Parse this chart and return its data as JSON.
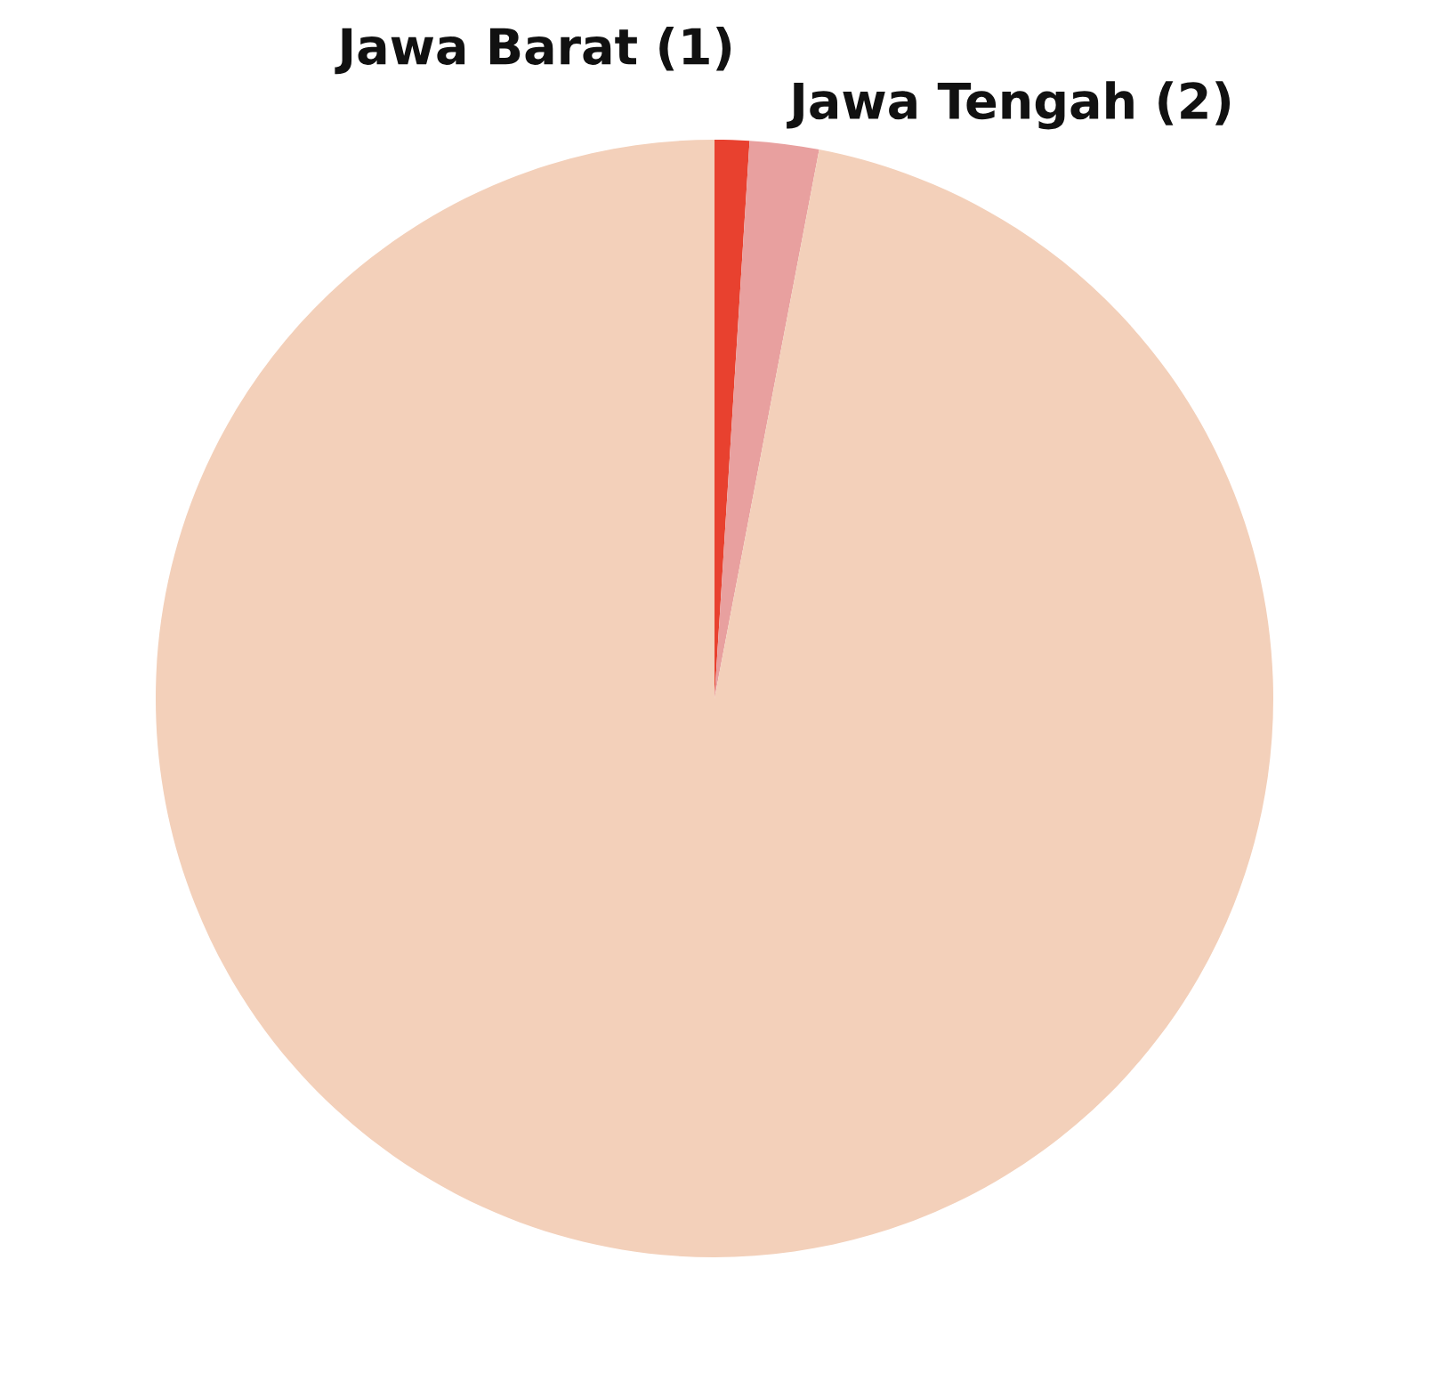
{
  "chart_data": {
    "type": "pie",
    "categories": [
      "Jawa Barat (1)",
      "Jawa Tengah (2)",
      null
    ],
    "values": [
      1,
      2,
      97
    ],
    "colors": [
      "#e8412f",
      "#e8a09f",
      "#f3d0ba"
    ]
  }
}
